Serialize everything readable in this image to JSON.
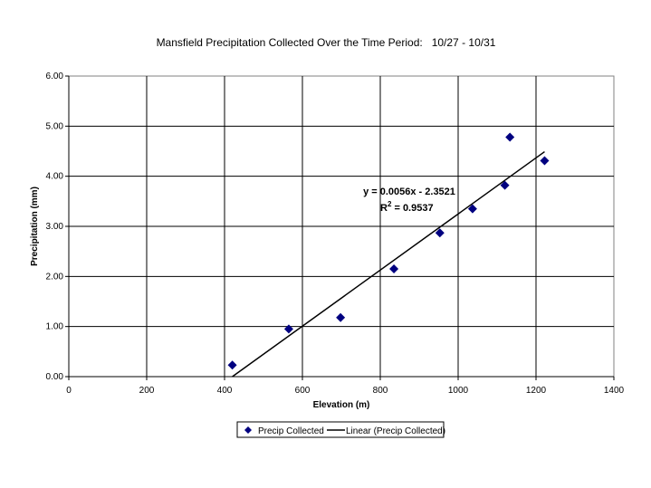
{
  "chart_data": {
    "type": "scatter",
    "title": "Mansfield Precipitation Collected Over the Time Period:   10/27 - 10/31",
    "xlabel": "Elevation (m)",
    "ylabel": "Precipitation (mm)",
    "xlim": [
      0,
      1400
    ],
    "ylim": [
      0,
      6
    ],
    "x_ticks": [
      "0",
      "200",
      "400",
      "600",
      "800",
      "1000",
      "1200",
      "1400"
    ],
    "y_ticks": [
      "0.00",
      "1.00",
      "2.00",
      "3.00",
      "4.00",
      "5.00",
      "6.00"
    ],
    "grid": true,
    "legend_position": "bottom",
    "series": [
      {
        "name": "Precip Collected",
        "marker": "diamond",
        "color": "#000080",
        "points": [
          {
            "x": 420,
            "y": 0.23
          },
          {
            "x": 565,
            "y": 0.95
          },
          {
            "x": 698,
            "y": 1.18
          },
          {
            "x": 835,
            "y": 2.15
          },
          {
            "x": 953,
            "y": 2.87
          },
          {
            "x": 1037,
            "y": 3.35
          },
          {
            "x": 1120,
            "y": 3.82
          },
          {
            "x": 1133,
            "y": 4.78
          },
          {
            "x": 1222,
            "y": 4.31
          }
        ]
      },
      {
        "name": "Linear (Precip Collected)",
        "type": "line",
        "color": "#000000",
        "points": [
          {
            "x": 420,
            "y": 0.0
          },
          {
            "x": 1222,
            "y": 4.49
          }
        ]
      }
    ],
    "annotations": {
      "equation": "y = 0.0056x - 2.3521",
      "r2_prefix": "R",
      "r2_sup": "2",
      "r2_value": " = 0.9537"
    }
  }
}
